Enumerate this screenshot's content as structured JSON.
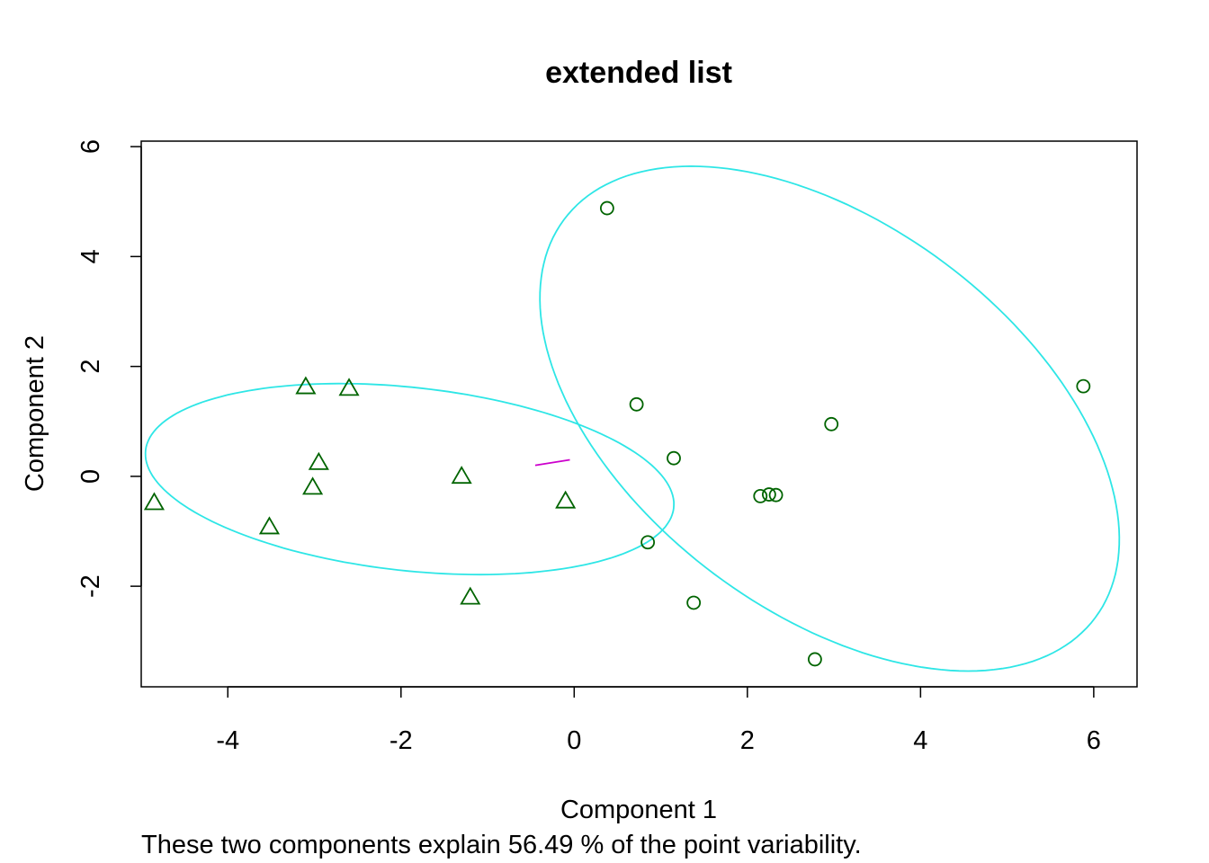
{
  "chart_data": {
    "type": "scatter",
    "title": "extended list",
    "xlabel": "Component 1",
    "ylabel": "Component 2",
    "subtitle": "These two components explain 56.49 % of the point variability.",
    "xlim": [
      -5.0,
      6.5
    ],
    "ylim": [
      -3.83,
      6.1
    ],
    "x_ticks": [
      "-4",
      "-2",
      "0",
      "2",
      "4",
      "6"
    ],
    "y_ticks": [
      "-2",
      "0",
      "2",
      "4",
      "6"
    ],
    "grid": false,
    "point_color": "#006400",
    "ellipse_color": "#2EE6E6",
    "connector_color": "#CC00CC",
    "series": [
      {
        "marker": "triangle",
        "points": [
          [
            -4.85,
            -0.48
          ],
          [
            -3.52,
            -0.92
          ],
          [
            -3.1,
            1.63
          ],
          [
            -2.6,
            1.6
          ],
          [
            -2.95,
            0.25
          ],
          [
            -3.02,
            -0.2
          ],
          [
            -1.3,
            0.0
          ],
          [
            -1.2,
            -2.2
          ],
          [
            -0.1,
            -0.45
          ]
        ]
      },
      {
        "marker": "circle",
        "points": [
          [
            0.38,
            4.88
          ],
          [
            0.72,
            1.31
          ],
          [
            1.15,
            0.33
          ],
          [
            0.85,
            -1.2
          ],
          [
            1.38,
            -2.3
          ],
          [
            2.15,
            -0.36
          ],
          [
            2.25,
            -0.33
          ],
          [
            2.33,
            -0.34
          ],
          [
            2.97,
            0.95
          ],
          [
            2.78,
            -3.33
          ],
          [
            5.88,
            1.64
          ]
        ]
      }
    ],
    "ellipses": [
      {
        "cx": -1.9,
        "cy": -0.05,
        "rx": 3.1,
        "ry": 1.65,
        "rot": -12
      },
      {
        "cx": 2.95,
        "cy": 1.05,
        "rx": 5.0,
        "ry": 2.7,
        "rot": -62
      }
    ],
    "connector": [
      [
        -0.45,
        0.2
      ],
      [
        -0.05,
        0.3
      ]
    ]
  }
}
